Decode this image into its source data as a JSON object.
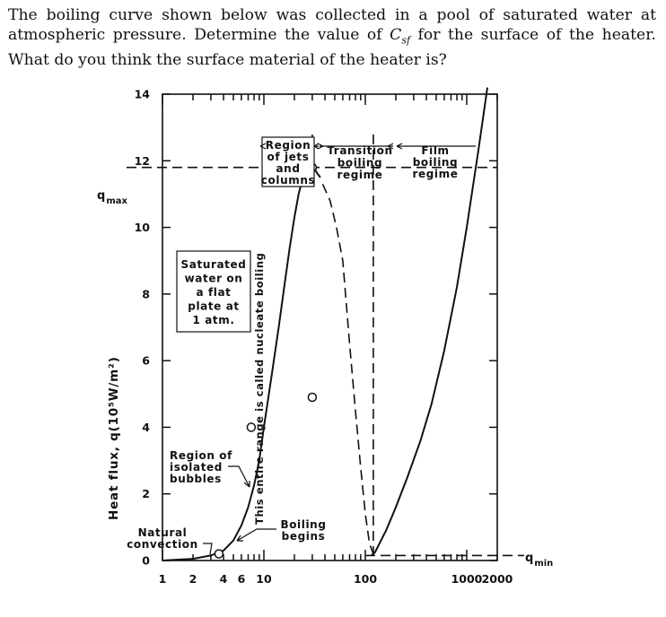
{
  "question": {
    "part1": "The boiling curve shown below was collected in a pool of saturated water at atmospheric pressure. Determine the value of ",
    "csf_main": "C",
    "csf_sub": "sf",
    "part2": " for the surface of the heater. What do you think the surface material of the heater is?"
  },
  "chart_data": {
    "type": "line",
    "xscale": "log",
    "xlim": [
      1,
      2000
    ],
    "ylim": [
      0,
      14
    ],
    "y_ticks": [
      "0",
      "2",
      "4",
      "6",
      "8",
      "10",
      "12",
      "14"
    ],
    "x_tick_labels": [
      "1",
      "2",
      "4",
      "6",
      "10",
      "100",
      "1000",
      "2000"
    ],
    "x_tick_values": [
      1,
      2,
      4,
      6,
      10,
      100,
      1000,
      2000
    ],
    "ylabel": "Heat flux, q(10⁵W/m²)",
    "q_max_label": "q",
    "q_max_sub": "max",
    "q_min_label": "q",
    "q_min_sub": "min",
    "q_max_value": 11.8,
    "q_min_value": 0.15,
    "series": [
      {
        "style": "solid",
        "x": [
          1,
          2,
          3,
          4,
          5,
          6,
          7,
          8,
          9,
          10,
          12,
          14,
          16,
          18,
          20,
          22,
          24,
          26,
          28,
          30,
          32,
          34,
          36
        ],
        "y": [
          0,
          0.05,
          0.15,
          0.3,
          0.6,
          1.05,
          1.6,
          2.25,
          3.0,
          4.0,
          5.6,
          7.0,
          8.3,
          9.4,
          10.3,
          11.0,
          11.45,
          11.7,
          11.82,
          11.8,
          11.72,
          11.6,
          11.5
        ]
      },
      {
        "style": "dashed",
        "x": [
          38,
          45,
          52,
          60,
          70,
          80,
          90,
          100,
          110,
          120
        ],
        "y": [
          11.3,
          10.8,
          10.0,
          9.0,
          6.5,
          4.5,
          2.8,
          1.4,
          0.5,
          0.2
        ]
      },
      {
        "style": "solid",
        "x": [
          115,
          125,
          140,
          160,
          200,
          260,
          350,
          450,
          600,
          800,
          1000,
          1300,
          1600
        ],
        "y": [
          0.15,
          0.25,
          0.55,
          0.9,
          1.6,
          2.5,
          3.6,
          4.7,
          6.3,
          8.2,
          10.0,
          12.3,
          14.2
        ]
      }
    ],
    "markers": [
      {
        "x": 3.6,
        "y": 0.2
      },
      {
        "x": 7.5,
        "y": 4.0
      },
      {
        "x": 30,
        "y": 11.8
      },
      {
        "x": 30,
        "y": 4.9
      }
    ],
    "annotations": {
      "box": [
        "Saturated",
        "water on",
        "a flat",
        "plate at",
        "1 atm."
      ],
      "jets": [
        "Region",
        "of jets",
        "and",
        "columns"
      ],
      "transition": [
        "Transition",
        "boiling",
        "regime"
      ],
      "film": [
        "Film",
        "boiling",
        "regime"
      ],
      "isolated": [
        "Region of",
        "isolated",
        "bubbles"
      ],
      "natural": [
        "Natural",
        "convection"
      ],
      "boiling_begins": [
        "Boiling",
        "begins"
      ],
      "nucleate": "This entire range is called nucleate boiling"
    }
  }
}
